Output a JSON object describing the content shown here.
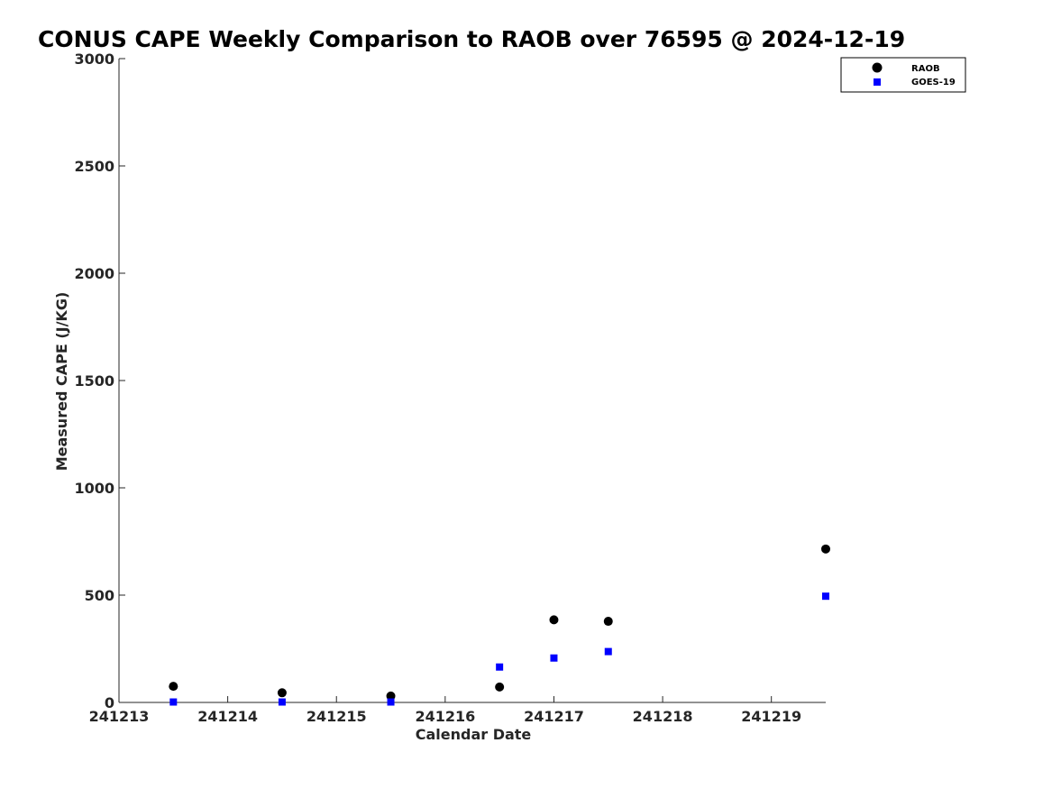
{
  "chart_data": {
    "type": "scatter",
    "title": "CONUS CAPE Weekly Comparison to RAOB over 76595 @ 2024-12-19",
    "xlabel": "Calendar Date",
    "ylabel": "Measured CAPE (J/KG)",
    "xlim": [
      241213,
      241219.5
    ],
    "ylim": [
      0,
      3000
    ],
    "x_ticks": [
      241213,
      241214,
      241215,
      241216,
      241217,
      241218,
      241219
    ],
    "x_tick_labels": [
      "241213",
      "241214",
      "241215",
      "241216",
      "241217",
      "241218",
      "241219"
    ],
    "y_ticks": [
      0,
      500,
      1000,
      1500,
      2000,
      2500,
      3000
    ],
    "y_tick_labels": [
      "0",
      "500",
      "1000",
      "1500",
      "2000",
      "2500",
      "3000"
    ],
    "grid": false,
    "legend_position": "top-right",
    "series": [
      {
        "name": "RAOB",
        "marker": "circle",
        "color": "#000000",
        "points": [
          {
            "x": 241213.5,
            "y": 75
          },
          {
            "x": 241214.5,
            "y": 45
          },
          {
            "x": 241215.5,
            "y": 30
          },
          {
            "x": 241216.5,
            "y": 72
          },
          {
            "x": 241217.0,
            "y": 385
          },
          {
            "x": 241217.5,
            "y": 378
          },
          {
            "x": 241219.5,
            "y": 715
          }
        ]
      },
      {
        "name": "GOES-19",
        "marker": "square",
        "color": "#0000ff",
        "points": [
          {
            "x": 241213.5,
            "y": 2
          },
          {
            "x": 241214.5,
            "y": 2
          },
          {
            "x": 241215.5,
            "y": 2
          },
          {
            "x": 241216.5,
            "y": 165
          },
          {
            "x": 241217.0,
            "y": 207
          },
          {
            "x": 241217.5,
            "y": 237
          },
          {
            "x": 241219.5,
            "y": 495
          }
        ]
      }
    ]
  }
}
